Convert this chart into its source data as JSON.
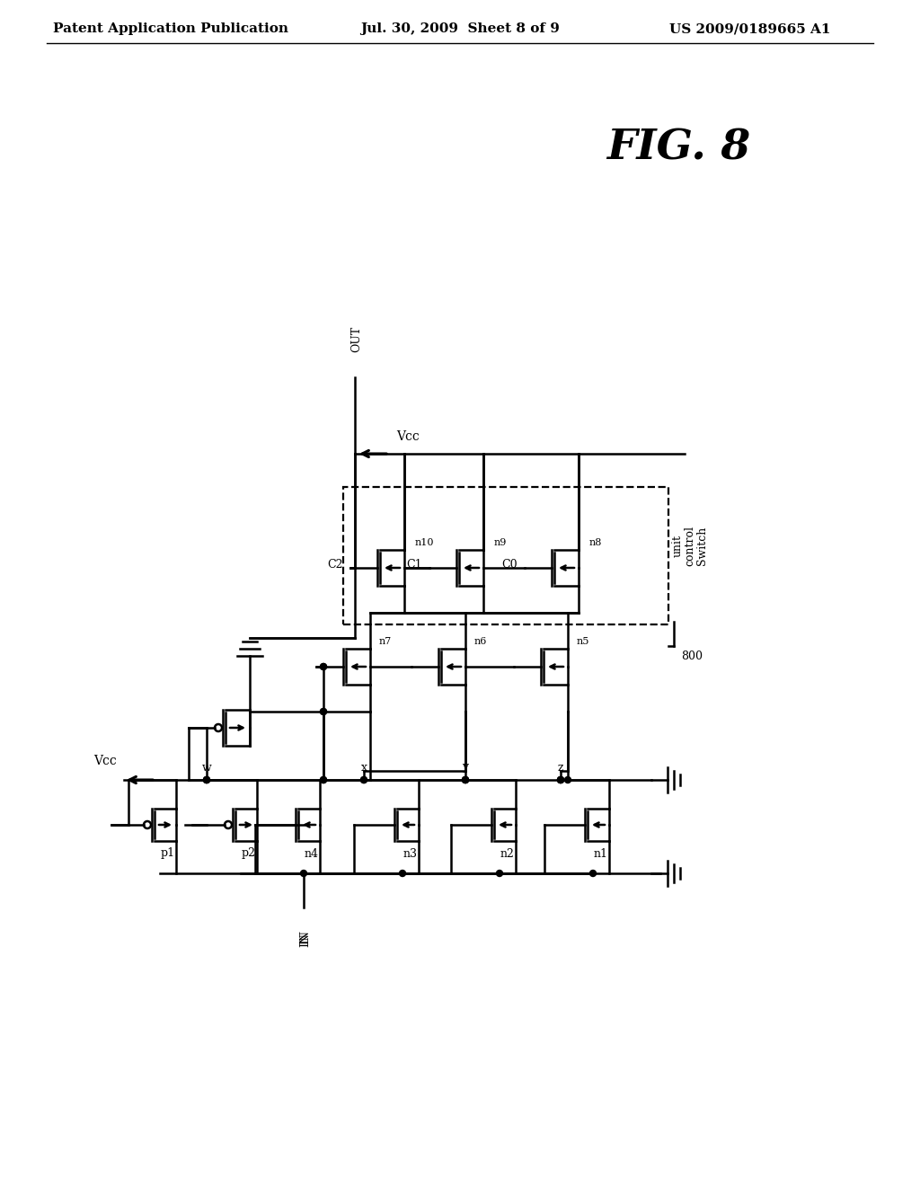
{
  "header_left": "Patent Application Publication",
  "header_center": "Jul. 30, 2009  Sheet 8 of 9",
  "header_right": "US 2009/0189665 A1",
  "fig_label": "FIG. 8",
  "bg": "#ffffff",
  "lc": "#000000"
}
